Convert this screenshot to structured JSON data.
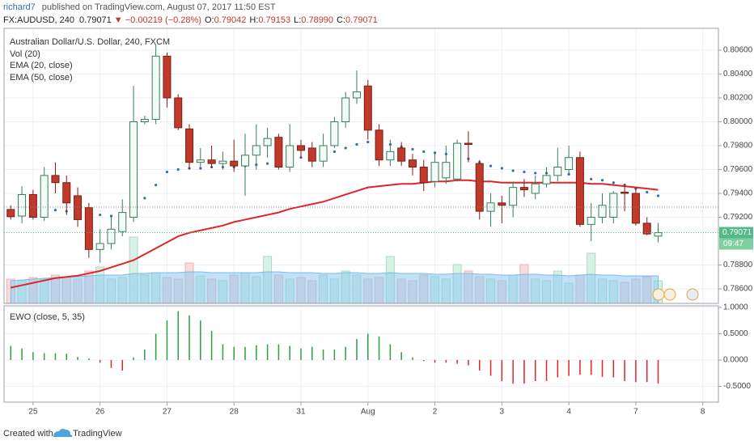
{
  "header": {
    "user": "richard7",
    "published": "published on TradingView.com, August 07, 2017 11:50 EST",
    "symbol": "FX:AUDUSD, 240",
    "last": "0.79071",
    "change": "▼ −0.00219 (−0.28%)",
    "ohlc": [
      {
        "label": "O:",
        "value": "0.79042"
      },
      {
        "label": "H:",
        "value": "0.79153"
      },
      {
        "label": "L:",
        "value": "0.78990"
      },
      {
        "label": "C:",
        "value": "0.79071"
      }
    ]
  },
  "chart_data": [
    {
      "type": "candlestick",
      "title": "Australian Dollar/U.S. Dollar, 240, FXCM",
      "x": [
        0,
        1,
        2,
        3,
        4,
        5,
        6,
        7,
        8,
        9,
        10,
        11,
        12,
        13,
        14,
        15,
        16,
        17,
        18,
        19,
        20,
        21,
        22,
        23,
        24,
        25,
        26,
        27,
        28,
        29,
        30,
        31,
        32,
        33,
        34,
        35,
        36,
        37,
        38,
        39,
        40,
        41,
        42,
        43,
        44,
        45,
        46,
        47,
        48,
        49,
        50,
        51,
        52,
        53,
        54,
        55,
        56,
        57,
        58
      ],
      "open": [
        0.79265,
        0.7921,
        0.7939,
        0.792,
        0.7955,
        0.7949,
        0.7938,
        0.7928,
        0.7893,
        0.7898,
        0.7908,
        0.792,
        0.8,
        0.8002,
        0.8055,
        0.802,
        0.7994,
        0.7966,
        0.7968,
        0.7965,
        0.7967,
        0.7963,
        0.7972,
        0.798,
        0.7987,
        0.7962,
        0.798,
        0.7978,
        0.7967,
        0.798,
        0.8,
        0.802,
        0.803,
        0.7993,
        0.7968,
        0.7978,
        0.7968,
        0.7962,
        0.795,
        0.7953,
        0.7952,
        0.7982,
        0.7965,
        0.7925,
        0.7932,
        0.793,
        0.7945,
        0.794,
        0.7948,
        0.7955,
        0.796,
        0.797,
        0.7914,
        0.792,
        0.792,
        0.7941,
        0.794,
        0.7915,
        0.79042
      ],
      "high": [
        0.793,
        0.7946,
        0.7943,
        0.7962,
        0.7966,
        0.7955,
        0.7945,
        0.7932,
        0.791,
        0.7922,
        0.7935,
        0.803,
        0.8005,
        0.8065,
        0.8058,
        0.8023,
        0.7998,
        0.7978,
        0.798,
        0.7975,
        0.7985,
        0.799,
        0.7998,
        0.7995,
        0.799,
        0.7998,
        0.7985,
        0.7983,
        0.799,
        0.8004,
        0.8025,
        0.8043,
        0.8035,
        0.7998,
        0.7985,
        0.7983,
        0.7973,
        0.7968,
        0.7975,
        0.798,
        0.7985,
        0.7992,
        0.7968,
        0.794,
        0.7938,
        0.795,
        0.7952,
        0.7955,
        0.7962,
        0.7978,
        0.798,
        0.7975,
        0.7932,
        0.794,
        0.7942,
        0.7948,
        0.7945,
        0.792,
        0.79153
      ],
      "low": [
        0.7918,
        0.7915,
        0.7918,
        0.7917,
        0.794,
        0.7922,
        0.7912,
        0.7886,
        0.7882,
        0.7893,
        0.7904,
        0.7916,
        0.7998,
        0.7998,
        0.8012,
        0.7993,
        0.796,
        0.7962,
        0.7961,
        0.796,
        0.7958,
        0.7938,
        0.796,
        0.797,
        0.796,
        0.7958,
        0.797,
        0.7962,
        0.7962,
        0.7978,
        0.7995,
        0.8015,
        0.7985,
        0.7963,
        0.7963,
        0.7963,
        0.7955,
        0.7942,
        0.7945,
        0.7948,
        0.795,
        0.7966,
        0.7918,
        0.7912,
        0.7915,
        0.792,
        0.7937,
        0.7935,
        0.7945,
        0.795,
        0.7957,
        0.7912,
        0.79,
        0.7915,
        0.7915,
        0.7925,
        0.7913,
        0.7905,
        0.7899
      ],
      "close": [
        0.79205,
        0.7939,
        0.792,
        0.7955,
        0.7949,
        0.7932,
        0.7918,
        0.7893,
        0.7898,
        0.791,
        0.7924,
        0.8,
        0.8002,
        0.8055,
        0.802,
        0.7995,
        0.7966,
        0.7968,
        0.7965,
        0.7967,
        0.7963,
        0.7972,
        0.798,
        0.7986,
        0.7962,
        0.798,
        0.7976,
        0.7967,
        0.798,
        0.8,
        0.802,
        0.8025,
        0.7993,
        0.7968,
        0.7975,
        0.7967,
        0.7962,
        0.7949,
        0.7966,
        0.7966,
        0.7982,
        0.7981,
        0.7925,
        0.7932,
        0.793,
        0.7945,
        0.7943,
        0.7948,
        0.7955,
        0.7962,
        0.797,
        0.7914,
        0.792,
        0.793,
        0.794,
        0.794,
        0.7915,
        0.7906,
        0.79071
      ],
      "up_color": "#53b987",
      "down_color": "#c0392b",
      "series": [
        {
          "name": "EMA (20, close)",
          "color": "#2f6fb0",
          "style": "dots",
          "values": [
            0.7921,
            0.7924,
            0.7925,
            0.7926,
            0.7926,
            0.7925,
            0.7924,
            0.7923,
            0.7922,
            0.7921,
            0.7923,
            0.7927,
            0.7936,
            0.7947,
            0.7958,
            0.796,
            0.7961,
            0.7961,
            0.7962,
            0.7962,
            0.7962,
            0.7963,
            0.7964,
            0.7965,
            0.7966,
            0.7968,
            0.797,
            0.7971,
            0.7973,
            0.7975,
            0.7978,
            0.7981,
            0.7983,
            0.7983,
            0.7981,
            0.7979,
            0.7977,
            0.7975,
            0.7974,
            0.7973,
            0.7972,
            0.7969,
            0.7966,
            0.7963,
            0.7961,
            0.7959,
            0.7958,
            0.7957,
            0.7957,
            0.7956,
            0.7956,
            0.7953,
            0.7952,
            0.7951,
            0.7949,
            0.7947,
            0.7944,
            0.7941,
            0.7938
          ]
        },
        {
          "name": "EMA (50, close)",
          "color": "#e0242a",
          "style": "line",
          "values": [
            0.7861,
            0.7863,
            0.7865,
            0.7867,
            0.7869,
            0.787,
            0.7871,
            0.7873,
            0.7875,
            0.7878,
            0.7881,
            0.7884,
            0.7889,
            0.7894,
            0.7899,
            0.7904,
            0.7907,
            0.7909,
            0.7911,
            0.7913,
            0.7916,
            0.7918,
            0.792,
            0.7922,
            0.7924,
            0.7927,
            0.7929,
            0.7931,
            0.7933,
            0.7936,
            0.7939,
            0.7942,
            0.7945,
            0.7946,
            0.7947,
            0.7948,
            0.7948,
            0.7949,
            0.795,
            0.795,
            0.7951,
            0.7951,
            0.795,
            0.795,
            0.7949,
            0.7949,
            0.7949,
            0.7949,
            0.7949,
            0.7949,
            0.7949,
            0.7949,
            0.7948,
            0.7948,
            0.7947,
            0.7946,
            0.7945,
            0.7944,
            0.7943
          ]
        }
      ],
      "volume": {
        "name": "Vol (20)",
        "vlim": [
          0,
          100
        ],
        "values": [
          30,
          28,
          32,
          30,
          35,
          33,
          30,
          40,
          45,
          30,
          32,
          82,
          35,
          38,
          32,
          30,
          50,
          34,
          30,
          28,
          35,
          38,
          33,
          58,
          35,
          30,
          32,
          28,
          35,
          30,
          40,
          35,
          30,
          32,
          58,
          30,
          28,
          35,
          33,
          30,
          48,
          40,
          33,
          30,
          28,
          35,
          48,
          30,
          28,
          40,
          25,
          35,
          62,
          30,
          28,
          26,
          30,
          33,
          28
        ],
        "ma": [
          28,
          29,
          30,
          31,
          32,
          33,
          33,
          34,
          35,
          35,
          35,
          37,
          37,
          38,
          38,
          38,
          39,
          39,
          38,
          38,
          38,
          38,
          38,
          39,
          39,
          38,
          38,
          38,
          37,
          37,
          38,
          38,
          37,
          37,
          38,
          37,
          37,
          37,
          36,
          36,
          37,
          37,
          36,
          36,
          35,
          35,
          36,
          36,
          35,
          35,
          34,
          35,
          36,
          35,
          35,
          34,
          34,
          34,
          34
        ]
      },
      "countdown": "09:47",
      "xlim": [
        -0.6,
        63.4
      ],
      "ylim": [
        0.78478,
        0.80783
      ],
      "yticks": [
        {
          "value": 0.806,
          "label": "0.80600"
        },
        {
          "value": 0.804,
          "label": "0.80400"
        },
        {
          "value": 0.802,
          "label": "0.80200"
        },
        {
          "value": 0.8,
          "label": "0.80000"
        },
        {
          "value": 0.798,
          "label": "0.79800"
        },
        {
          "value": 0.796,
          "label": "0.79600"
        },
        {
          "value": 0.794,
          "label": "0.79400"
        },
        {
          "value": 0.792,
          "label": "0.79200"
        },
        {
          "value": 0.788,
          "label": "0.78800"
        },
        {
          "value": 0.786,
          "label": "0.78600"
        }
      ],
      "grid": true
    },
    {
      "type": "bar",
      "title": "EWO (close, 5, 35)",
      "x": [
        0,
        1,
        2,
        3,
        4,
        5,
        6,
        7,
        8,
        9,
        10,
        11,
        12,
        13,
        14,
        15,
        16,
        17,
        18,
        19,
        20,
        21,
        22,
        23,
        24,
        25,
        26,
        27,
        28,
        29,
        30,
        31,
        32,
        33,
        34,
        35,
        36,
        37,
        38,
        39,
        40,
        41,
        42,
        43,
        44,
        45,
        46,
        47,
        48,
        49,
        50,
        51,
        52,
        53,
        54,
        55,
        56,
        57,
        58
      ],
      "values": [
        0.27,
        0.22,
        0.15,
        0.13,
        0.13,
        0.12,
        0.06,
        0.03,
        -0.05,
        -0.15,
        -0.2,
        0.05,
        0.2,
        0.5,
        0.75,
        0.93,
        0.85,
        0.75,
        0.55,
        0.3,
        0.25,
        0.25,
        0.28,
        0.3,
        0.3,
        0.27,
        0.22,
        0.25,
        0.2,
        0.2,
        0.25,
        0.4,
        0.5,
        0.45,
        0.3,
        0.15,
        0.05,
        -0.02,
        -0.05,
        -0.05,
        -0.07,
        -0.1,
        -0.2,
        -0.3,
        -0.4,
        -0.45,
        -0.45,
        -0.4,
        -0.4,
        -0.33,
        -0.3,
        -0.28,
        -0.28,
        -0.32,
        -0.33,
        -0.4,
        -0.42,
        -0.42,
        -0.45
      ],
      "up_color": "#2e9e3e",
      "down_color": "#e0242a",
      "xlim": [
        -0.6,
        63.4
      ],
      "ylim": [
        -0.8,
        1.03
      ],
      "yticks": [
        {
          "value": 1,
          "label": "1.0000"
        },
        {
          "value": 0.5,
          "label": "0.5000"
        },
        {
          "value": 0,
          "label": "0.0000"
        },
        {
          "value": -0.5,
          "label": "-0.5000"
        }
      ],
      "xticks": [
        {
          "value": 2,
          "label": "25"
        },
        {
          "value": 8,
          "label": "26"
        },
        {
          "value": 14,
          "label": "27"
        },
        {
          "value": 20,
          "label": "28"
        },
        {
          "value": 26,
          "label": "31"
        },
        {
          "value": 32,
          "label": "Aug"
        },
        {
          "value": 38,
          "label": "2"
        },
        {
          "value": 44,
          "label": "3"
        },
        {
          "value": 50,
          "label": "4"
        },
        {
          "value": 56,
          "label": "7"
        },
        {
          "value": 62,
          "label": "8"
        }
      ],
      "grid": true
    }
  ],
  "footer": {
    "created": "Created with",
    "brand": "TradingView"
  }
}
